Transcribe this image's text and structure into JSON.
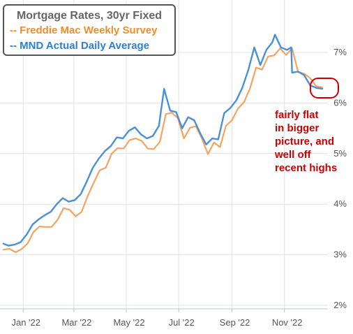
{
  "chart_data": {
    "type": "line",
    "title": "Mortgage Rates, 30yr Fixed",
    "x_ticks": [
      "Jan '22",
      "Mar '22",
      "May '22",
      "Jul '22",
      "Sep '22",
      "Nov '22"
    ],
    "y_ticks": [
      "2%",
      "3%",
      "4%",
      "5%",
      "6%",
      "7%"
    ],
    "ylim": [
      2,
      7.5
    ],
    "grid": true,
    "legend_position": "top-left",
    "series": [
      {
        "name": "Freddie Mac Weekly Survey",
        "legend_label": "-- Freddie Mac Weekly Survey",
        "color": "#f4a460",
        "x": [
          "2021-12-09",
          "2021-12-16",
          "2021-12-23",
          "2021-12-30",
          "2022-01-06",
          "2022-01-13",
          "2022-01-20",
          "2022-01-27",
          "2022-02-03",
          "2022-02-10",
          "2022-02-17",
          "2022-02-24",
          "2022-03-03",
          "2022-03-10",
          "2022-03-17",
          "2022-03-24",
          "2022-03-31",
          "2022-04-07",
          "2022-04-14",
          "2022-04-21",
          "2022-04-28",
          "2022-05-05",
          "2022-05-12",
          "2022-05-19",
          "2022-05-26",
          "2022-06-02",
          "2022-06-09",
          "2022-06-16",
          "2022-06-23",
          "2022-06-30",
          "2022-07-07",
          "2022-07-14",
          "2022-07-21",
          "2022-07-28",
          "2022-08-04",
          "2022-08-11",
          "2022-08-18",
          "2022-08-25",
          "2022-09-01",
          "2022-09-08",
          "2022-09-15",
          "2022-09-22",
          "2022-09-29",
          "2022-10-06",
          "2022-10-13",
          "2022-10-20",
          "2022-10-27",
          "2022-11-03",
          "2022-11-10",
          "2022-11-17",
          "2022-11-24",
          "2022-12-01",
          "2022-12-08",
          "2022-12-15"
        ],
        "y": [
          3.1,
          3.12,
          3.05,
          3.11,
          3.22,
          3.45,
          3.56,
          3.55,
          3.55,
          3.69,
          3.92,
          3.89,
          3.76,
          3.85,
          4.16,
          4.42,
          4.67,
          4.72,
          5.0,
          5.11,
          5.1,
          5.27,
          5.3,
          5.25,
          5.1,
          5.09,
          5.23,
          5.78,
          5.81,
          5.7,
          5.3,
          5.51,
          5.54,
          5.3,
          4.99,
          5.22,
          5.13,
          5.55,
          5.66,
          5.89,
          6.02,
          6.29,
          6.7,
          6.66,
          6.92,
          6.94,
          7.08,
          6.95,
          7.08,
          6.61,
          6.58,
          6.49,
          6.33,
          6.31
        ]
      },
      {
        "name": "MND Actual Daily Average",
        "legend_label": "-- MND Actual Daily Average",
        "color": "#4a90d9",
        "x": [
          "2021-12-09",
          "2021-12-15",
          "2021-12-22",
          "2021-12-29",
          "2022-01-05",
          "2022-01-12",
          "2022-01-19",
          "2022-01-26",
          "2022-02-02",
          "2022-02-09",
          "2022-02-16",
          "2022-02-23",
          "2022-03-02",
          "2022-03-09",
          "2022-03-16",
          "2022-03-23",
          "2022-03-30",
          "2022-04-06",
          "2022-04-13",
          "2022-04-20",
          "2022-04-27",
          "2022-05-04",
          "2022-05-11",
          "2022-05-18",
          "2022-05-25",
          "2022-06-01",
          "2022-06-08",
          "2022-06-14",
          "2022-06-21",
          "2022-06-28",
          "2022-07-05",
          "2022-07-12",
          "2022-07-19",
          "2022-07-26",
          "2022-08-02",
          "2022-08-09",
          "2022-08-16",
          "2022-08-23",
          "2022-08-30",
          "2022-09-06",
          "2022-09-13",
          "2022-09-20",
          "2022-09-27",
          "2022-10-04",
          "2022-10-11",
          "2022-10-18",
          "2022-10-21",
          "2022-10-28",
          "2022-11-04",
          "2022-11-09",
          "2022-11-10",
          "2022-11-17",
          "2022-11-24",
          "2022-12-01",
          "2022-12-08",
          "2022-12-15"
        ],
        "y": [
          3.22,
          3.18,
          3.2,
          3.25,
          3.4,
          3.6,
          3.7,
          3.78,
          3.85,
          4.0,
          4.12,
          4.05,
          4.08,
          4.2,
          4.45,
          4.72,
          4.9,
          5.05,
          5.15,
          5.32,
          5.3,
          5.45,
          5.52,
          5.38,
          5.3,
          5.35,
          5.55,
          6.28,
          5.85,
          5.82,
          5.5,
          5.72,
          5.66,
          5.4,
          5.18,
          5.3,
          5.28,
          5.8,
          5.9,
          6.05,
          6.3,
          6.65,
          7.1,
          6.75,
          7.05,
          7.2,
          7.35,
          7.1,
          7.05,
          7.1,
          6.6,
          6.62,
          6.55,
          6.35,
          6.3,
          6.28
        ]
      }
    ],
    "annotation": {
      "lines": [
        "fairly flat",
        "in bigger",
        "picture, and",
        "well off",
        "recent highs"
      ],
      "color": "#cc0000"
    }
  }
}
